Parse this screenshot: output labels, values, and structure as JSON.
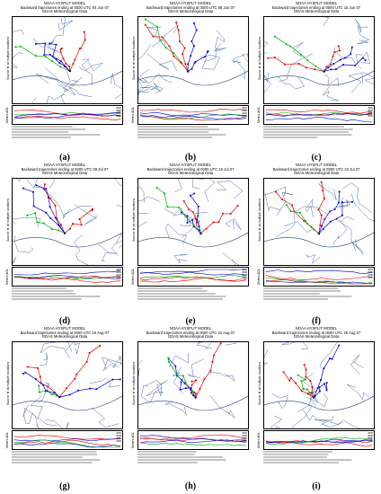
{
  "panels": [
    {
      "id": "a",
      "caption": "(a)",
      "model": "NOAA HYSPLIT MODEL",
      "title": "Backward trajectories ending at 0000 UTC 04 Jun 07",
      "data": "GDAS Meteorological Data",
      "source_axis": "Source ★ at multiple locations",
      "alt_axis": "Meters AGL",
      "alt_ticks": [
        "3000",
        "2500",
        "2000",
        "1500"
      ]
    },
    {
      "id": "b",
      "caption": "(b)",
      "model": "NOAA HYSPLIT MODEL",
      "title": "Backward trajectories ending at 0000 UTC 08 Jun 07",
      "data": "GDAS Meteorological Data",
      "source_axis": "Source ★ at multiple locations",
      "alt_axis": "Meters AGL",
      "alt_ticks": [
        "3000",
        "2500",
        "2000",
        "1500"
      ]
    },
    {
      "id": "c",
      "caption": "(c)",
      "model": "NOAA HYSPLIT MODEL",
      "title": "Backward trajectories ending at 0000 UTC 15 Jun 07",
      "data": "GDAS Meteorological Data",
      "source_axis": "Source ★ at multiple locations",
      "alt_axis": "Meters AGL",
      "alt_ticks": [
        "4000",
        "3000",
        "2000",
        "1000"
      ]
    },
    {
      "id": "d",
      "caption": "(d)",
      "model": "NOAA HYSPLIT MODEL",
      "title": "Backward trajectories ending at 0000 UTC 08 Jul 07",
      "data": "GDAS Meteorological Data",
      "source_axis": "Source ★ at multiple locations",
      "alt_axis": "Meters AGL",
      "alt_ticks": [
        "3000",
        "2500",
        "2000",
        "1500"
      ]
    },
    {
      "id": "e",
      "caption": "(e)",
      "model": "NOAA HYSPLIT MODEL",
      "title": "Backward trajectories ending at 0000 UTC 15 Jul 07",
      "data": "GDAS Meteorological Data",
      "source_axis": "Source ★ at multiple locations",
      "alt_axis": "Meters AGL",
      "alt_ticks": [
        "3000",
        "2500",
        "2000",
        "1500"
      ]
    },
    {
      "id": "f",
      "caption": "(f)",
      "model": "NOAA HYSPLIT MODEL",
      "title": "Backward trajectories ending at 0000 UTC 22 Jul 07",
      "data": "GDAS Meteorological Data",
      "source_axis": "Source ★ at multiple locations",
      "alt_axis": "Meters AGL",
      "alt_ticks": [
        "3000",
        "2500",
        "2000",
        "1500"
      ]
    },
    {
      "id": "g",
      "caption": "(g)",
      "model": "NOAA HYSPLIT MODEL",
      "title": "Backward trajectories ending at 0000 UTC 15 Aug 07",
      "data": "GDAS Meteorological Data",
      "source_axis": "Source ★ at multiple locations",
      "alt_axis": "Meters AGL",
      "alt_ticks": [
        "3000",
        "2500",
        "2000",
        "1500"
      ]
    },
    {
      "id": "h",
      "caption": "(h)",
      "model": "NOAA HYSPLIT MODEL",
      "title": "Backward trajectories ending at 0000 UTC 22 Aug 07",
      "data": "GDAS Meteorological Data",
      "source_axis": "Source ★ at multiple locations",
      "alt_axis": "Meters AGL",
      "alt_ticks": [
        "3000",
        "2500",
        "2000",
        "1500"
      ]
    },
    {
      "id": "i",
      "caption": "(i)",
      "model": "NOAA HYSPLIT MODEL",
      "title": "Backward trajectories ending at 0000 UTC 29 Aug 07",
      "data": "GDAS Meteorological Data",
      "source_axis": "Source ★ at multiple locations",
      "alt_axis": "Meters AGL",
      "alt_ticks": [
        "4000",
        "3000",
        "2000",
        "1000"
      ]
    }
  ],
  "colors": {
    "red": "#e00000",
    "blue": "#0000d0",
    "green": "#00b000",
    "border": "#3a5a9a"
  }
}
